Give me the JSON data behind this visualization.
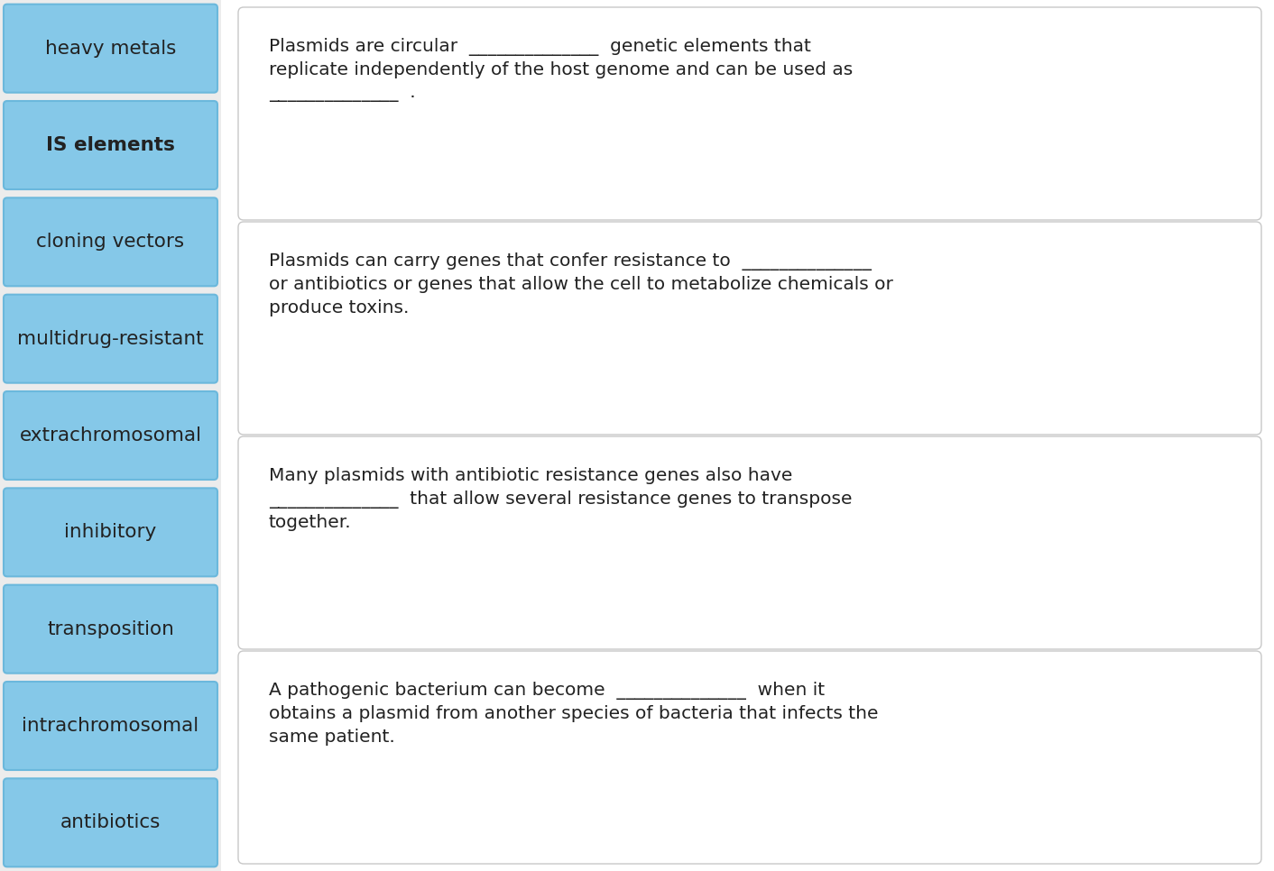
{
  "background_color": "#f0f0f0",
  "page_bg": "#ffffff",
  "left_panel_bg": "#e8e8e8",
  "left_buttons": [
    {
      "label": "heavy metals",
      "bold": false
    },
    {
      "label": "IS elements",
      "bold": true
    },
    {
      "label": "cloning vectors",
      "bold": false
    },
    {
      "label": "multidrug-resistant",
      "bold": false
    },
    {
      "label": "extrachromosomal",
      "bold": false
    },
    {
      "label": "inhibitory",
      "bold": false
    },
    {
      "label": "transposition",
      "bold": false
    },
    {
      "label": "intrachromosomal",
      "bold": false
    },
    {
      "label": "antibiotics",
      "bold": false
    }
  ],
  "button_color": "#85C8E8",
  "button_border_color": "#6BB8DC",
  "right_boxes": [
    {
      "text_lines": [
        "Plasmids are circular  ______________  genetic elements that",
        "replicate independently of the host genome and can be used as",
        "______________  ."
      ]
    },
    {
      "text_lines": [
        "Plasmids can carry genes that confer resistance to  ______________",
        "or antibiotics or genes that allow the cell to metabolize chemicals or",
        "produce toxins."
      ]
    },
    {
      "text_lines": [
        "Many plasmids with antibiotic resistance genes also have",
        "______________  that allow several resistance genes to transpose",
        "together."
      ]
    },
    {
      "text_lines": [
        "A pathogenic bacterium can become  ______________  when it",
        "obtains a plasmid from another species of bacteria that infects the",
        "same patient."
      ]
    }
  ],
  "box_bg": "#ffffff",
  "box_border": "#c8c8c8",
  "text_color": "#222222",
  "font_size": 14.5,
  "btn_font_size": 15.5
}
